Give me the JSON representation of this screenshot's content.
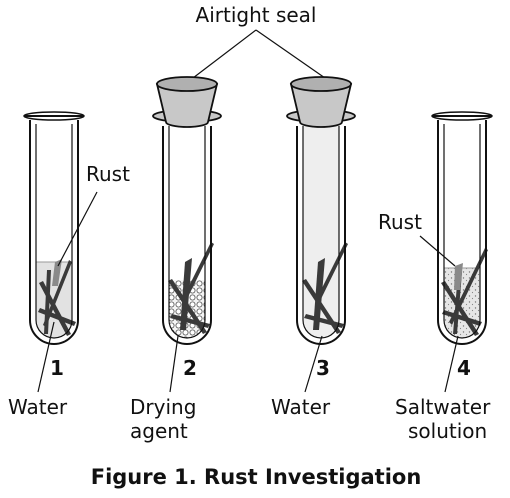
{
  "figure": {
    "caption": "Figure 1. Rust Investigation",
    "seal_label": "Airtight seal",
    "tubes": [
      {
        "number": "1",
        "label_lines": [
          "Water"
        ],
        "rust_label": "Rust"
      },
      {
        "number": "2",
        "label_lines": [
          "Drying",
          "agent"
        ]
      },
      {
        "number": "3",
        "label_lines": [
          "Water"
        ]
      },
      {
        "number": "4",
        "label_lines": [
          "Saltwater",
          "solution"
        ],
        "rust_label": "Rust"
      }
    ]
  },
  "colors": {
    "outline": "#111111",
    "liquid": "#e2e2e2",
    "tube_tint": "#eeeeee",
    "nail": "#3a3a3a",
    "rust": "#8a8a8a",
    "stopper": "#c8c8c8"
  }
}
